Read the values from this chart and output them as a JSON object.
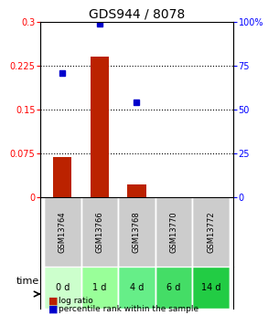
{
  "title": "GDS944 / 8078",
  "samples": [
    "GSM13764",
    "GSM13766",
    "GSM13768",
    "GSM13770",
    "GSM13772"
  ],
  "time_labels": [
    "0 d",
    "1 d",
    "4 d",
    "6 d",
    "14 d"
  ],
  "log_ratio": [
    0.068,
    0.24,
    0.022,
    0.0,
    0.0
  ],
  "percentile_rank": [
    0.71,
    0.99,
    0.54,
    0.0,
    0.0
  ],
  "left_ylim": [
    0,
    0.3
  ],
  "right_ylim": [
    0,
    100
  ],
  "left_yticks": [
    0,
    0.075,
    0.15,
    0.225,
    0.3
  ],
  "right_yticks": [
    0,
    25,
    50,
    75,
    100
  ],
  "left_ytick_labels": [
    "0",
    "0.075",
    "0.15",
    "0.225",
    "0.3"
  ],
  "right_ytick_labels": [
    "0",
    "25",
    "50",
    "75",
    "100%"
  ],
  "bar_color": "#bb2200",
  "dot_color": "#0000cc",
  "grid_color": "#000000",
  "sample_bg_color": "#cccccc",
  "time_bg_colors": [
    "#ccffcc",
    "#99ff99",
    "#66ee88",
    "#44dd66",
    "#22cc44"
  ],
  "legend_bar_label": "log ratio",
  "legend_dot_label": "percentile rank within the sample",
  "bar_width": 0.5
}
